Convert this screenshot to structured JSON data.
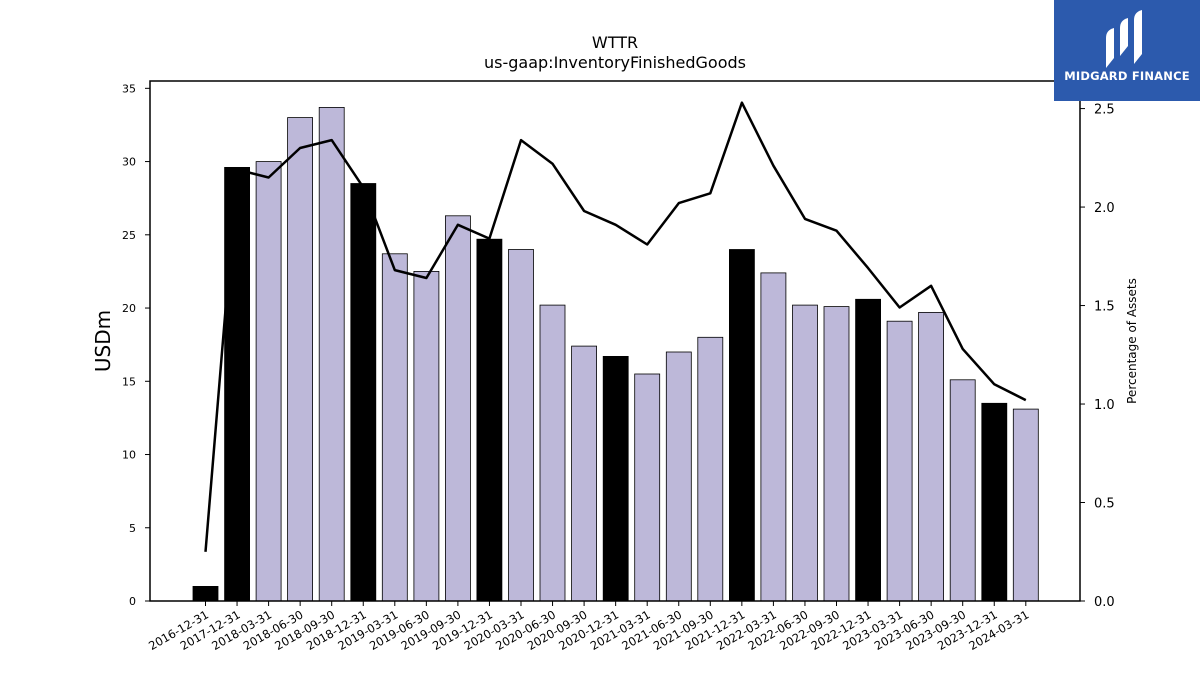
{
  "chart_data": {
    "type": "bar",
    "title": "WTTR",
    "subtitle": "us-gaap:InventoryFinishedGoods",
    "ylabel": "USDm",
    "y2label": "Percentage of Assets",
    "ylim": [
      0,
      35.5
    ],
    "y2lim": [
      0,
      2.64
    ],
    "yticks": [
      0,
      5,
      10,
      15,
      20,
      25,
      30,
      35
    ],
    "y2ticks": [
      "0.0",
      "0.5",
      "1.0",
      "1.5",
      "2.0",
      "2.5"
    ],
    "grid": false,
    "categories": [
      "2016-12-31",
      "2017-12-31",
      "2018-03-31",
      "2018-06-30",
      "2018-09-30",
      "2018-12-31",
      "2019-03-31",
      "2019-06-30",
      "2019-09-30",
      "2019-12-31",
      "2020-03-31",
      "2020-06-30",
      "2020-09-30",
      "2020-12-31",
      "2021-03-31",
      "2021-06-30",
      "2021-09-30",
      "2021-12-31",
      "2022-03-31",
      "2022-06-30",
      "2022-09-30",
      "2022-12-31",
      "2023-03-31",
      "2023-06-30",
      "2023-09-30",
      "2023-12-31",
      "2024-03-31"
    ],
    "series": [
      {
        "values": [
          1.0,
          29.6,
          30.0,
          33.0,
          33.7,
          28.5,
          23.7,
          22.5,
          26.3,
          24.7,
          24.0,
          20.2,
          17.4,
          16.7,
          15.5,
          17.0,
          18.0,
          24.0,
          22.4,
          20.2,
          20.1,
          20.6,
          19.1,
          19.7,
          15.1,
          13.5,
          13.1
        ],
        "annual": [
          true,
          true,
          false,
          false,
          false,
          true,
          false,
          false,
          false,
          true,
          false,
          false,
          false,
          true,
          false,
          false,
          false,
          true,
          false,
          false,
          false,
          true,
          false,
          false,
          false,
          true,
          false
        ],
        "axis": "left"
      },
      {
        "type": "line",
        "values": [
          0.25,
          2.19,
          2.15,
          2.3,
          2.34,
          2.1,
          1.68,
          1.64,
          1.91,
          1.84,
          2.34,
          2.22,
          1.98,
          1.91,
          1.81,
          2.02,
          2.07,
          2.53,
          2.21,
          1.94,
          1.88,
          1.69,
          1.49,
          1.6,
          1.28,
          1.1,
          1.02
        ],
        "axis": "right"
      }
    ],
    "colors": {
      "annual_bar": "#000000",
      "quarter_bar": "#bdb8d9",
      "bar_edge": "#000000",
      "line": "#000000"
    }
  },
  "logo": {
    "text": "MIDGARD FINANCE",
    "color": "#2c5aad"
  }
}
